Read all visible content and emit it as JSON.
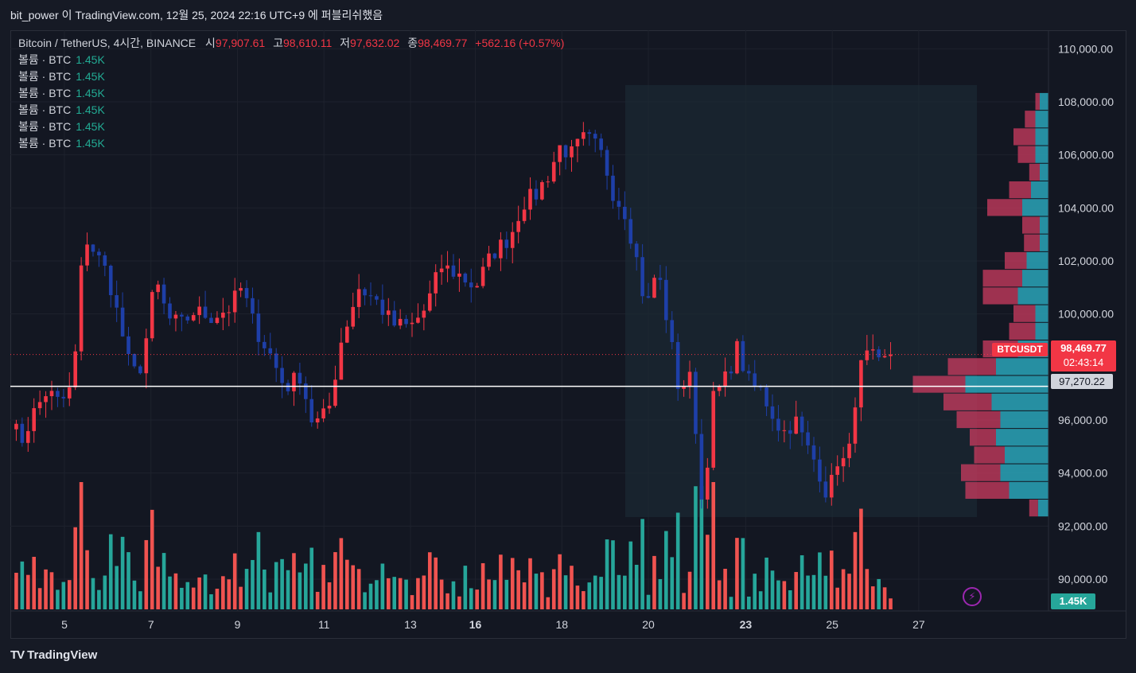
{
  "header": {
    "publisher": "bit_power 이 TradingView.com, 12월 25, 2024 22:16 UTC+9 에 퍼블리쉬했음"
  },
  "legend": {
    "symbol": "Bitcoin / TetherUS, 4시간, BINANCE",
    "open_label": "시",
    "open": "97,907.61",
    "high_label": "고",
    "high": "98,610.11",
    "low_label": "저",
    "low": "97,632.02",
    "close_label": "종",
    "close": "98,469.77",
    "change": "+562.16 (+0.57%)",
    "volume_rows": [
      {
        "label": "볼륨 · BTC",
        "value": "1.45K"
      },
      {
        "label": "볼륨 · BTC",
        "value": "1.45K"
      },
      {
        "label": "볼륨 · BTC",
        "value": "1.45K"
      },
      {
        "label": "볼륨 · BTC",
        "value": "1.45K"
      },
      {
        "label": "볼륨 · BTC",
        "value": "1.45K"
      },
      {
        "label": "볼륨 · BTC",
        "value": "1.45K"
      }
    ]
  },
  "badges": {
    "ticker": "BTCUSDT",
    "last_price": "98,469.77",
    "countdown": "02:43:14",
    "hline_price": "97,270.22",
    "volume": "1.45K"
  },
  "footer": {
    "brand": "TradingView",
    "logo": "tv-logo-icon"
  },
  "colors": {
    "up": "#F23645",
    "down": "#1E3FA8",
    "vol_up": "#F05350",
    "vol_down": "#26A69A",
    "vp_up": "#C2395C",
    "vp_down": "#2AA5B8",
    "bg": "#131722"
  },
  "chart_data": {
    "type": "candlestick",
    "ylim": [
      88800,
      110700
    ],
    "xlim": [
      3.75,
      27.75
    ],
    "y_ticks": [
      "110,000.00",
      "108,000.00",
      "106,000.00",
      "104,000.00",
      "102,000.00",
      "100,000.00",
      "96,000.00",
      "94,000.00",
      "92,000.00",
      "90,000.00"
    ],
    "y_tick_values": [
      110000,
      108000,
      106000,
      104000,
      102000,
      100000,
      96000,
      94000,
      92000,
      90000
    ],
    "x_ticks": [
      "5",
      "7",
      "9",
      "11",
      "13",
      "16",
      "18",
      "20",
      "23",
      "25",
      "27"
    ],
    "x_tick_values": [
      5,
      7,
      9,
      11,
      13,
      14.5,
      16.5,
      18.5,
      20.75,
      22.75,
      24.75
    ],
    "bold_x_ticks": [
      "16",
      "23"
    ],
    "horizontal_line": 97270.22,
    "last_price": 98469.77,
    "candles_anchor": [
      [
        3.75,
        96000
      ],
      [
        4.0,
        95200
      ],
      [
        4.3,
        96300
      ],
      [
        4.6,
        97100
      ],
      [
        4.9,
        96600
      ],
      [
        5.2,
        97300
      ],
      [
        5.45,
        103000
      ],
      [
        5.75,
        102200
      ],
      [
        6.0,
        101500
      ],
      [
        6.3,
        99500
      ],
      [
        6.55,
        97700
      ],
      [
        6.8,
        98100
      ],
      [
        7.1,
        101300
      ],
      [
        7.4,
        99800
      ],
      [
        7.7,
        99600
      ],
      [
        8.0,
        100100
      ],
      [
        8.4,
        99900
      ],
      [
        8.8,
        100200
      ],
      [
        9.1,
        101000
      ],
      [
        9.4,
        99500
      ],
      [
        9.75,
        98500
      ],
      [
        10.1,
        97200
      ],
      [
        10.45,
        97700
      ],
      [
        10.75,
        95800
      ],
      [
        11.1,
        96300
      ],
      [
        11.4,
        99000
      ],
      [
        11.8,
        101000
      ],
      [
        12.2,
        100500
      ],
      [
        12.6,
        99600
      ],
      [
        13.0,
        99500
      ],
      [
        13.35,
        100200
      ],
      [
        13.7,
        101800
      ],
      [
        14.1,
        101500
      ],
      [
        14.5,
        101000
      ],
      [
        14.9,
        102300
      ],
      [
        15.3,
        102900
      ],
      [
        15.6,
        104200
      ],
      [
        15.9,
        104500
      ],
      [
        16.2,
        105300
      ],
      [
        16.45,
        106300
      ],
      [
        16.75,
        106000
      ],
      [
        16.95,
        106600
      ],
      [
        17.2,
        106500
      ],
      [
        17.45,
        105900
      ],
      [
        17.7,
        104500
      ],
      [
        17.95,
        103900
      ],
      [
        18.2,
        102300
      ],
      [
        18.45,
        100100
      ],
      [
        18.7,
        101800
      ],
      [
        18.95,
        99600
      ],
      [
        19.2,
        97200
      ],
      [
        19.5,
        97600
      ],
      [
        19.75,
        92600
      ],
      [
        20.0,
        96800
      ],
      [
        20.3,
        97600
      ],
      [
        20.55,
        98700
      ],
      [
        20.85,
        97300
      ],
      [
        21.1,
        97100
      ],
      [
        21.35,
        96300
      ],
      [
        21.6,
        95500
      ],
      [
        21.9,
        96000
      ],
      [
        22.15,
        95000
      ],
      [
        22.4,
        94300
      ],
      [
        22.65,
        93100
      ],
      [
        22.9,
        94700
      ],
      [
        23.1,
        94200
      ],
      [
        23.35,
        97800
      ],
      [
        23.6,
        98500
      ],
      [
        23.85,
        98000
      ],
      [
        24.1,
        98500
      ]
    ],
    "volume_profile": {
      "price_bins": [
        108000,
        107333,
        106667,
        106000,
        105333,
        104667,
        104000,
        103333,
        102667,
        102000,
        101333,
        100667,
        100000,
        99333,
        98667,
        98000,
        97333,
        96667,
        96000,
        95333,
        94667,
        94000,
        93333,
        92667
      ],
      "up": [
        5,
        12,
        25,
        20,
        12,
        25,
        40,
        20,
        18,
        25,
        45,
        40,
        25,
        30,
        40,
        55,
        60,
        55,
        50,
        30,
        35,
        45,
        50,
        10
      ],
      "down": [
        10,
        15,
        15,
        15,
        10,
        20,
        30,
        10,
        10,
        25,
        30,
        35,
        15,
        15,
        35,
        60,
        95,
        65,
        55,
        60,
        50,
        55,
        45,
        12
      ]
    }
  }
}
